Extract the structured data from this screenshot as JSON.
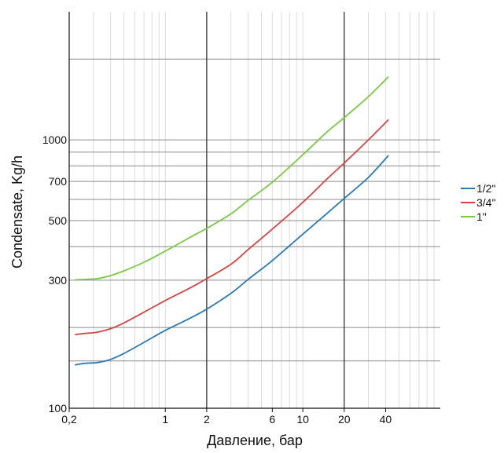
{
  "chart_data": {
    "type": "line",
    "title": "",
    "xlabel": "Давление, бар",
    "ylabel": "Condensate, Kg/h",
    "x_scale": "log",
    "y_scale": "log",
    "xlim": [
      0.2,
      100
    ],
    "ylim": [
      100,
      3000
    ],
    "x_ticks": [
      {
        "value": 0.2,
        "label": "0,2"
      },
      {
        "value": 1,
        "label": "1"
      },
      {
        "value": 2,
        "label": "2"
      },
      {
        "value": 6,
        "label": "6"
      },
      {
        "value": 10,
        "label": "10"
      },
      {
        "value": 20,
        "label": "20"
      },
      {
        "value": 40,
        "label": "40"
      }
    ],
    "y_ticks": [
      {
        "value": 100,
        "label": "100"
      },
      {
        "value": 300,
        "label": "300"
      },
      {
        "value": 500,
        "label": "500"
      },
      {
        "value": 700,
        "label": "700"
      },
      {
        "value": 1000,
        "label": "1000"
      }
    ],
    "x_major_lines": [
      2,
      20
    ],
    "x_minor_lines": [
      0.3,
      0.4,
      0.5,
      0.6,
      0.7,
      0.8,
      0.9,
      1,
      3,
      4,
      5,
      6,
      7,
      8,
      9,
      10,
      30,
      40,
      50,
      60,
      70,
      80,
      90
    ],
    "y_grid_lines": [
      100,
      150,
      200,
      300,
      400,
      500,
      600,
      700,
      800,
      900,
      1000,
      2000
    ],
    "grid": true,
    "legend": "right",
    "series": [
      {
        "name": "1/2\"",
        "color": "#2a7ab7",
        "x": [
          0.22,
          0.26,
          0.32,
          0.4,
          0.5,
          0.7,
          1,
          1.5,
          2,
          3,
          4,
          6,
          10,
          15,
          20,
          30,
          42
        ],
        "y": [
          145,
          147,
          148,
          152,
          160,
          176,
          195,
          216,
          234,
          268,
          302,
          355,
          445,
          532,
          605,
          725,
          875
        ]
      },
      {
        "name": "3/4\"",
        "color": "#d64545",
        "x": [
          0.22,
          0.26,
          0.32,
          0.4,
          0.5,
          0.7,
          1,
          1.5,
          2,
          3,
          4,
          6,
          10,
          15,
          20,
          30,
          42
        ],
        "y": [
          188,
          190,
          192,
          198,
          208,
          228,
          252,
          280,
          304,
          344,
          390,
          465,
          585,
          715,
          820,
          1000,
          1190
        ]
      },
      {
        "name": "1\"",
        "color": "#7ac943",
        "x": [
          0.22,
          0.26,
          0.32,
          0.4,
          0.5,
          0.7,
          1,
          1.5,
          2,
          3,
          4,
          6,
          10,
          15,
          20,
          30,
          42
        ],
        "y": [
          301,
          302,
          304,
          312,
          325,
          350,
          385,
          432,
          468,
          530,
          595,
          695,
          880,
          1070,
          1210,
          1450,
          1720
        ]
      }
    ]
  }
}
